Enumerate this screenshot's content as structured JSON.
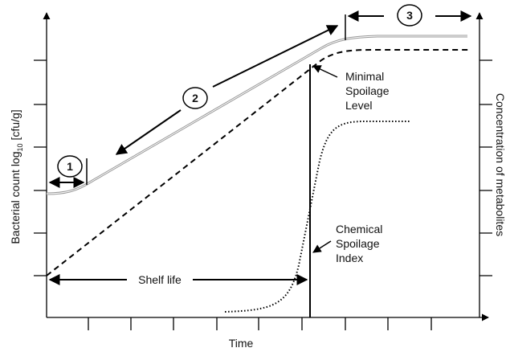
{
  "x_axis_label": "Time",
  "y_axis_label": {
    "text": "Bacterial count log",
    "subscript": "10",
    "unit": "[cfu/g]"
  },
  "y2_axis_label": "Concentration of metabolites",
  "phases": [
    "1",
    "2",
    "3"
  ],
  "annotations": {
    "minimal_spoilage_level": [
      "Minimal",
      "Spoilage",
      "Level"
    ],
    "shelf_life": "Shelf life",
    "chemical_spoilage_index": [
      "Chemical",
      "Spoilage",
      "Index"
    ]
  }
}
